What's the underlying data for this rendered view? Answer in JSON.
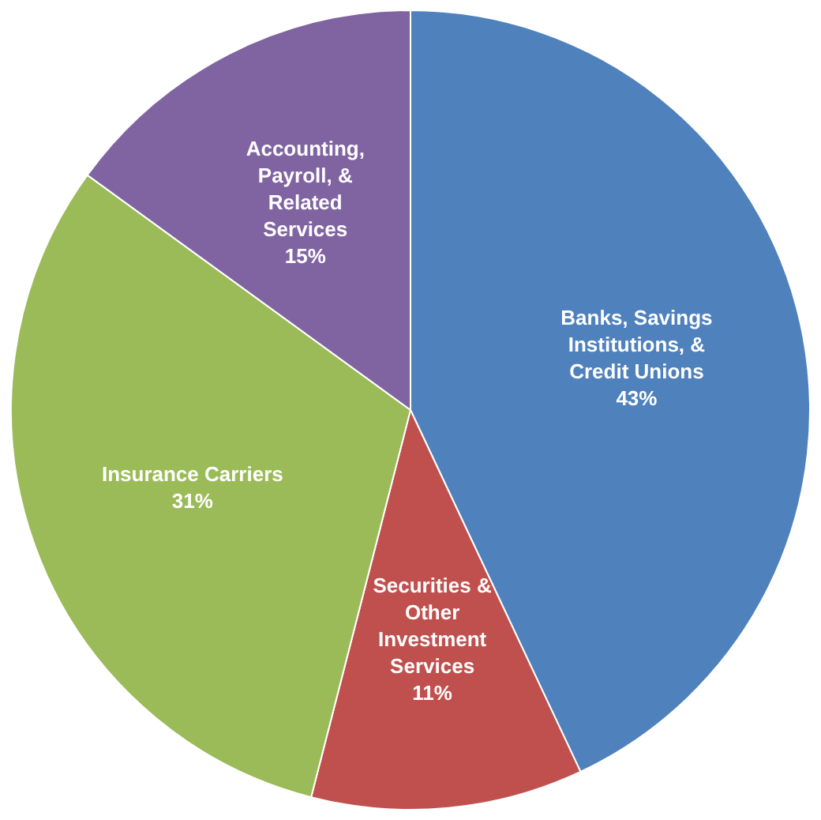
{
  "chart_data": {
    "type": "pie",
    "categories": [
      "Banks, Savings Institutions, & Credit Unions",
      "Securities & Other Investment Services",
      "Insurance Carriers",
      "Accounting, Payroll, & Related Services"
    ],
    "values": [
      43,
      11,
      31,
      15
    ],
    "colors": [
      "#4f81bd",
      "#c0504d",
      "#9bbb59",
      "#8064a2"
    ],
    "value_labels": [
      "43%",
      "11%",
      "31%",
      "15%"
    ],
    "legend": false
  }
}
